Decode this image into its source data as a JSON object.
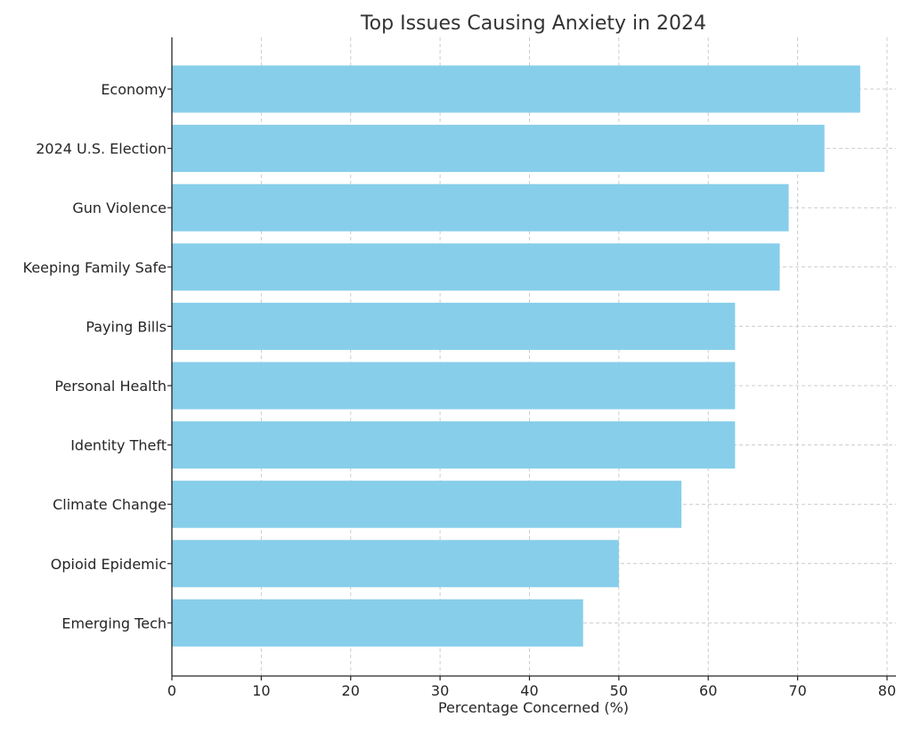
{
  "chart_data": {
    "type": "bar",
    "orientation": "horizontal",
    "title": "Top Issues Causing Anxiety in 2024",
    "xlabel": "Percentage Concerned (%)",
    "ylabel": "",
    "categories": [
      "Economy",
      "2024 U.S. Election",
      "Gun Violence",
      "Keeping Family Safe",
      "Paying Bills",
      "Personal Health",
      "Identity Theft",
      "Climate Change",
      "Opioid Epidemic",
      "Emerging Tech"
    ],
    "values": [
      77,
      73,
      69,
      68,
      63,
      63,
      63,
      57,
      50,
      46
    ],
    "xlim": [
      0,
      81
    ],
    "xticks": [
      "0",
      "10",
      "20",
      "30",
      "40",
      "50",
      "60",
      "70",
      "80"
    ],
    "grid": true,
    "bar_color": "#87ceeb"
  }
}
